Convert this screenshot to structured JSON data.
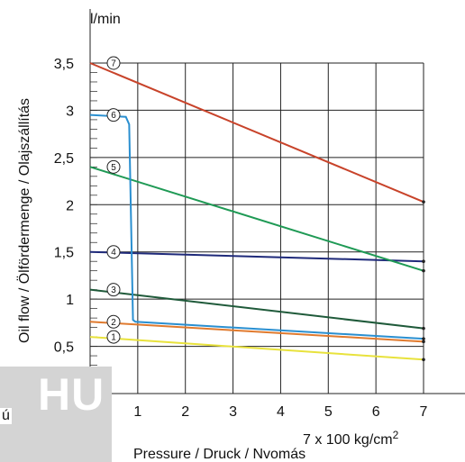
{
  "colors": {
    "series_1": "#e8e23c",
    "series_2": "#e07a2e",
    "series_3": "#1f5a3a",
    "series_4": "#1f2a7a",
    "series_5": "#1f9a55",
    "series_6": "#2a8fd0",
    "series_7": "#c8432a",
    "grid": "#222222"
  },
  "watermark": {
    "text": "HU",
    "fragment": "ú"
  },
  "chart_data": {
    "type": "line",
    "ylabel_unit": "l/min",
    "ylabel": "Oil flow / Ölfördermenge / Olajszállítás",
    "xlabel_unit": "7 x 100 kg/cm",
    "xlabel_unit_sup": "2",
    "xlabel": "Pressure / Druck / Nvomás",
    "xlim": [
      0,
      7
    ],
    "ylim": [
      0,
      3.5
    ],
    "x_ticks": [
      "1",
      "2",
      "3",
      "4",
      "5",
      "6",
      "7"
    ],
    "y_ticks": [
      "0,5",
      "1",
      "1,5",
      "2",
      "2,5",
      "3",
      "3,5"
    ],
    "grid": true,
    "series": [
      {
        "name": "1",
        "points": [
          [
            0,
            0.6
          ],
          [
            7,
            0.36
          ]
        ]
      },
      {
        "name": "2",
        "points": [
          [
            0,
            0.76
          ],
          [
            7,
            0.55
          ]
        ]
      },
      {
        "name": "3",
        "points": [
          [
            0,
            1.1
          ],
          [
            7,
            0.69
          ]
        ]
      },
      {
        "name": "4",
        "points": [
          [
            0,
            1.5
          ],
          [
            7,
            1.4
          ]
        ]
      },
      {
        "name": "5",
        "points": [
          [
            0,
            2.4
          ],
          [
            7,
            1.3
          ]
        ]
      },
      {
        "name": "6",
        "points": [
          [
            0,
            2.95
          ],
          [
            0.75,
            2.93
          ],
          [
            0.82,
            2.85
          ],
          [
            0.9,
            0.78
          ],
          [
            0.95,
            0.76
          ],
          [
            7,
            0.58
          ]
        ]
      },
      {
        "name": "7",
        "points": [
          [
            0,
            3.5
          ],
          [
            7,
            2.03
          ]
        ]
      }
    ]
  }
}
